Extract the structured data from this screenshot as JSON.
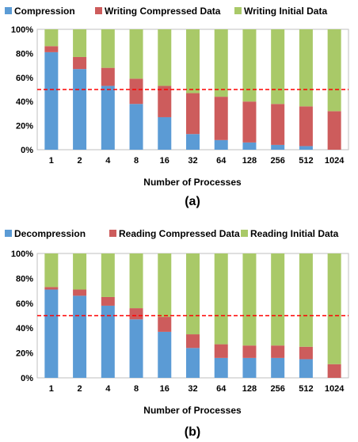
{
  "colors": {
    "segment_1": "#5b9bd5",
    "segment_2": "#cd5c5c",
    "segment_3": "#a9c968",
    "reference_line": "#ff0000",
    "plot_border": "#bfbfbf"
  },
  "chart_data": [
    {
      "type": "bar",
      "stacked": true,
      "percent": true,
      "caption": "(a)",
      "xlabel": "Number of Processes",
      "ylabel": "",
      "ylim": [
        0,
        100
      ],
      "yticks": [
        "0%",
        "20%",
        "40%",
        "60%",
        "80%",
        "100%"
      ],
      "categories": [
        "1",
        "2",
        "4",
        "8",
        "16",
        "32",
        "64",
        "128",
        "256",
        "512",
        "1024"
      ],
      "legend_position": "top",
      "series": [
        {
          "name": "Compression",
          "color": "#5b9bd5",
          "values": [
            81,
            67,
            53,
            38,
            27,
            13,
            8,
            6,
            4,
            3,
            0
          ]
        },
        {
          "name": "Writing Compressed Data",
          "color": "#cd5c5c",
          "values": [
            5,
            10,
            15,
            21,
            26,
            34,
            36,
            34,
            34,
            33,
            32
          ]
        },
        {
          "name": "Writing Initial Data",
          "color": "#a9c968",
          "values": [
            14,
            23,
            32,
            41,
            47,
            53,
            56,
            60,
            62,
            64,
            68
          ]
        }
      ],
      "reference_line": {
        "value": 50,
        "style": "dashed"
      }
    },
    {
      "type": "bar",
      "stacked": true,
      "percent": true,
      "caption": "(b)",
      "xlabel": "Number of Processes",
      "ylabel": "",
      "ylim": [
        0,
        100
      ],
      "yticks": [
        "0%",
        "20%",
        "40%",
        "60%",
        "80%",
        "100%"
      ],
      "categories": [
        "1",
        "2",
        "4",
        "8",
        "16",
        "32",
        "64",
        "128",
        "256",
        "512",
        "1024"
      ],
      "legend_position": "top",
      "series": [
        {
          "name": "Decompression",
          "color": "#5b9bd5",
          "values": [
            71,
            66,
            58,
            47,
            37,
            24,
            16,
            16,
            16,
            15,
            0
          ]
        },
        {
          "name": "Reading Compressed Data",
          "color": "#cd5c5c",
          "values": [
            2,
            5,
            7,
            9,
            12,
            11,
            11,
            10,
            10,
            10,
            11
          ]
        },
        {
          "name": "Reading Initial Data",
          "color": "#a9c968",
          "values": [
            27,
            29,
            35,
            44,
            51,
            65,
            73,
            74,
            74,
            75,
            89
          ]
        }
      ],
      "reference_line": {
        "value": 50,
        "style": "dashed"
      }
    }
  ]
}
